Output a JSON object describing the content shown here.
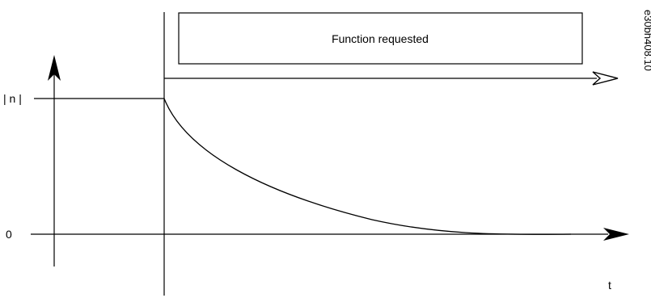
{
  "diagram": {
    "function_box_label": "Function requested",
    "y_axis_label": "| n |",
    "zero_label": "0",
    "x_axis_label": "t",
    "figure_code": "e30bh408.10"
  },
  "colors": {
    "stroke": "#000000",
    "background": "#ffffff"
  }
}
